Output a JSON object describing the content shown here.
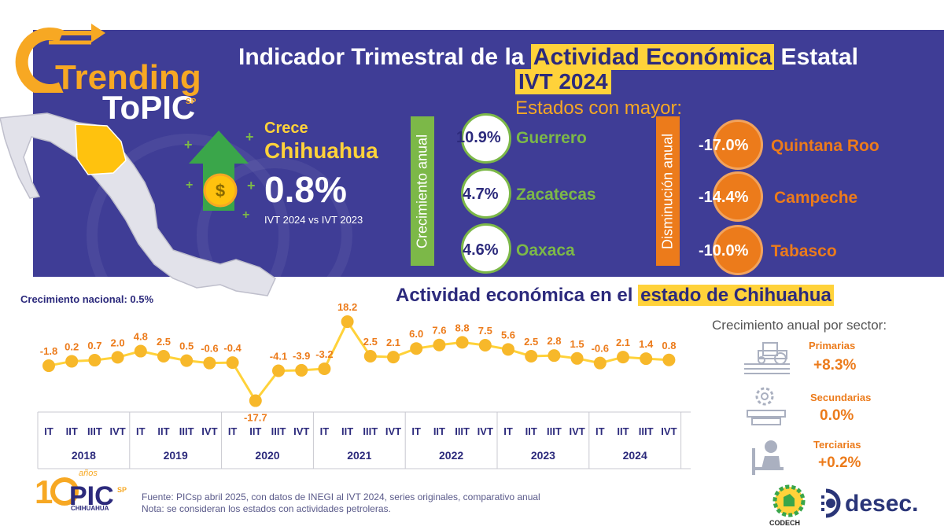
{
  "header": {
    "brand_line1": "Trending",
    "brand_line2_to": "To",
    "brand_line2_pic": "PIC",
    "brand_sp": "SP",
    "title_part1": "Indicador Trimestral de la ",
    "title_highlight": "Actividad Económica",
    "title_part2": " Estatal",
    "subtitle": "IVT 2024",
    "estados_label": "Estados con mayor:"
  },
  "highlight": {
    "crece": "Crece",
    "state": "Chihuahua",
    "value": "0.8%",
    "compare": "IVT 2024 vs IVT 2023"
  },
  "growth": {
    "label": "Crecimiento anual",
    "items": [
      {
        "value": "10.9%",
        "state": "Guerrero"
      },
      {
        "value": "4.7%",
        "state": "Zacatecas"
      },
      {
        "value": "4.6%",
        "state": "Oaxaca"
      }
    ]
  },
  "decline": {
    "label": "Disminución anual",
    "items": [
      {
        "value": "-17.0%",
        "state": "Quintana Roo"
      },
      {
        "value": "-14.4%",
        "state": "Campeche"
      },
      {
        "value": "-10.0%",
        "state": "Tabasco"
      }
    ]
  },
  "national": "Crecimiento nacional: 0.5%",
  "chart_title_part1": "Actividad económica en el ",
  "chart_title_highlight": "estado de Chihuahua",
  "chart_data": {
    "type": "line",
    "title": "Actividad económica en el estado de Chihuahua",
    "quarter_labels": [
      "IT",
      "IIT",
      "IIIT",
      "IVT"
    ],
    "years": [
      "2018",
      "2019",
      "2020",
      "2021",
      "2022",
      "2023",
      "2024"
    ],
    "x": [
      "2018 IT",
      "2018 IIT",
      "2018 IIIT",
      "2018 IVT",
      "2019 IT",
      "2019 IIT",
      "2019 IIIT",
      "2019 IVT",
      "2020 IT",
      "2020 IIT",
      "2020 IIIT",
      "2020 IVT",
      "2021 IT",
      "2021 IIT",
      "2021 IIIT",
      "2021 IVT",
      "2022 IT",
      "2022 IIT",
      "2022 IIIT",
      "2022 IVT",
      "2023 IT",
      "2023 IIT",
      "2023 IIIT",
      "2023 IVT",
      "2024 IT",
      "2024 IIT",
      "2024 IIIT",
      "2024 IVT"
    ],
    "values": [
      -1.8,
      0.2,
      0.7,
      2.0,
      4.8,
      2.5,
      0.5,
      -0.6,
      -0.4,
      -17.7,
      -4.1,
      -3.9,
      -3.2,
      18.2,
      2.5,
      2.1,
      6.0,
      7.6,
      8.8,
      7.5,
      5.6,
      2.5,
      2.8,
      1.5,
      -0.6,
      2.1,
      1.4,
      0.8
    ],
    "labels": [
      "-1.8",
      "0.2",
      "0.7",
      "2.0",
      "4.8",
      "2.5",
      "0.5",
      "-0.6",
      "-0.4",
      "-17.7",
      "-4.1",
      "-3.9",
      "-3.2",
      "18.2",
      "2.5",
      "2.1",
      "6.0",
      "7.6",
      "8.8",
      "7.5",
      "5.6",
      "2.5",
      "2.8",
      "1.5",
      "-0.6",
      "2.1",
      "1.4",
      "0.8"
    ],
    "line_color": "#ffd23a",
    "marker_color": "#f7b82a",
    "label_color": "#ec7b1b"
  },
  "sectors": {
    "title": "Crecimiento anual por sector:",
    "items": [
      {
        "name": "Primarias",
        "value": "+8.3%",
        "icon": "tractor-icon"
      },
      {
        "name": "Secundarias",
        "value": "0.0%",
        "icon": "factory-gear-icon"
      },
      {
        "name": "Terciarias",
        "value": "+0.2%",
        "icon": "office-worker-icon"
      }
    ]
  },
  "footer": {
    "source": "Fuente: PICsp abril 2025, con datos de INEGI al IVT 2024, series originales, comparativo anual",
    "note": "Nota: se consideran los estados con actividades petroleras.",
    "pic_years": "años",
    "pic_city": "CHIHUAHUA",
    "codech": "CODECH",
    "desec": "desec."
  },
  "colors": {
    "navy": "#3f3d96",
    "yellow": "#ffd23a",
    "orange": "#ec7b1b",
    "green": "#7cb848"
  }
}
